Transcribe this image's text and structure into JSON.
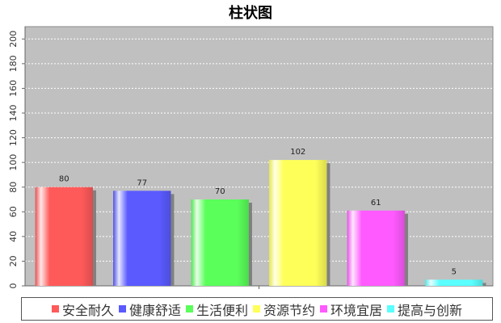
{
  "chart_data": {
    "type": "bar",
    "title": "柱状图",
    "categories": [
      "安全耐久",
      "健康舒适",
      "生活便利",
      "资源节约",
      "环境宜居",
      "提高与创新"
    ],
    "values": [
      80,
      77,
      70,
      102,
      61,
      5
    ],
    "colors": [
      "#ff5a5a",
      "#5a5aff",
      "#5aff5a",
      "#ffff5a",
      "#ff5aff",
      "#5affff"
    ],
    "ylim": [
      0,
      210
    ],
    "yticks": [
      0,
      20,
      40,
      60,
      80,
      100,
      120,
      140,
      160,
      180,
      200
    ],
    "grid": true,
    "legend_position": "bottom",
    "data_labels": true,
    "plot_background": "#c0c0c0"
  }
}
